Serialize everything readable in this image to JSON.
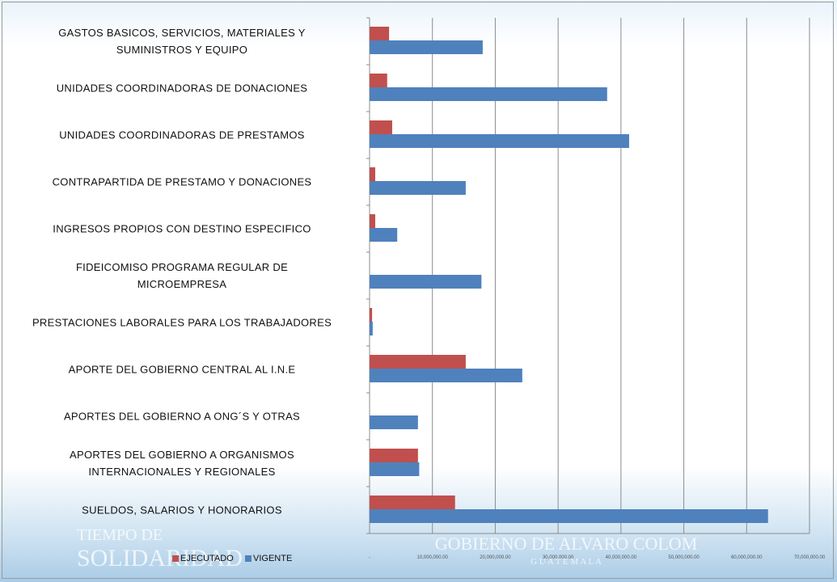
{
  "chart_data": {
    "type": "hbar",
    "categories": [
      "GASTOS BASICOS, SERVICIOS, MATERIALES Y\nSUMINISTROS Y EQUIPO",
      "UNIDADES COORDINADORAS DE DONACIONES",
      "UNIDADES COORDINADORAS DE PRESTAMOS",
      "CONTRAPARTIDA DE PRESTAMO Y DONACIONES",
      "INGRESOS PROPIOS CON DESTINO ESPECIFICO",
      "FIDEICOMISO PROGRAMA REGULAR DE\nMICROEMPRESA",
      "PRESTACIONES LABORALES  PARA LOS TRABAJADORES",
      "APORTE DEL GOBIERNO CENTRAL  AL  I.N.E",
      "APORTES DEL GOBIERNO  A ONG´S Y OTRAS",
      "APORTES DEL GOBIERNO  A ORGANISMOS\nINTERNACIONALES Y REGIONALES",
      "SUELDOS, SALARIOS Y HONORARIOS"
    ],
    "series": [
      {
        "name": "EJECUTADO",
        "color": "#c0504d",
        "values": [
          3100000,
          2800000,
          3600000,
          900000,
          900000,
          0,
          400000,
          15300000,
          0,
          7700000,
          13600000
        ]
      },
      {
        "name": "VIGENTE",
        "color": "#4f81bd",
        "values": [
          18000000,
          37800000,
          41300000,
          15300000,
          4400000,
          17800000,
          500000,
          24300000,
          7700000,
          7900000,
          63400000
        ]
      }
    ],
    "xlim": [
      0,
      70000000
    ],
    "xticks": [
      {
        "value": 0,
        "label": "-"
      },
      {
        "value": 10000000,
        "label": "10,000,000.00"
      },
      {
        "value": 20000000,
        "label": "20,000,000.00"
      },
      {
        "value": 30000000,
        "label": "30,000,000.00"
      },
      {
        "value": 40000000,
        "label": "40,000,000.00"
      },
      {
        "value": 50000000,
        "label": "50,000,000.00"
      },
      {
        "value": 60000000,
        "label": "60,000,000.00"
      },
      {
        "value": 70000000,
        "label": "70,000,000.00"
      }
    ],
    "grid": true,
    "legend": "bottom-left",
    "watermarks": [
      "TIEMPO DE",
      "SOLIDARIDAD",
      "GOBIERNO DE ALVARO COLOM",
      "G U A T E M A L A"
    ]
  }
}
